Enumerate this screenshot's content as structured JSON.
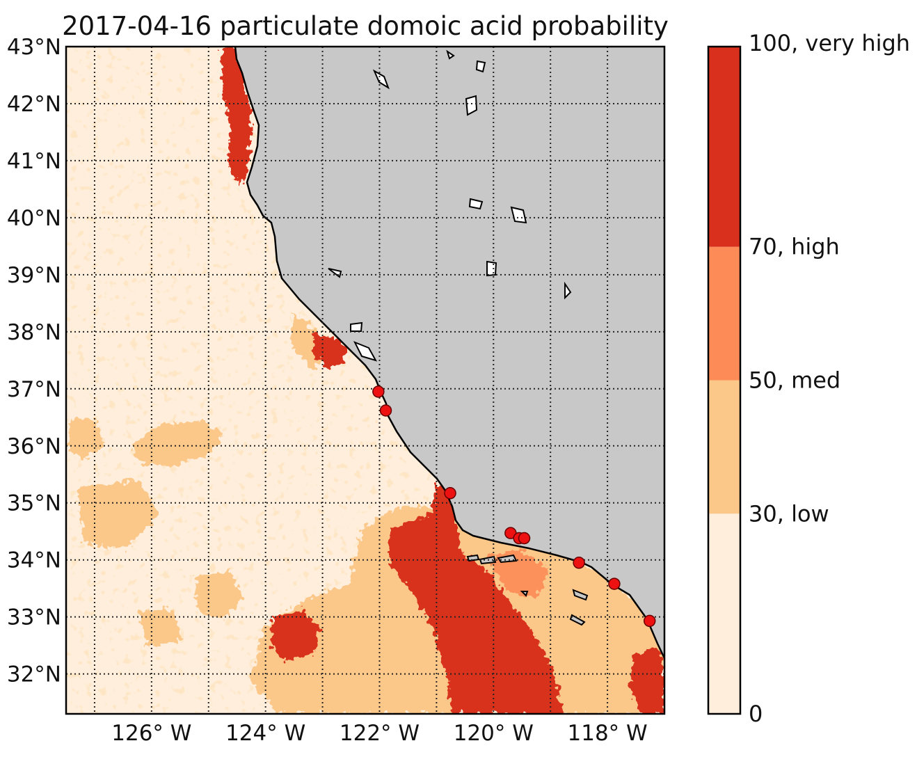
{
  "title": "2017-04-16 particulate domoic acid probability",
  "map": {
    "extent": {
      "lon_min": -127.5,
      "lon_max": -117.0,
      "lat_min": 31.3,
      "lat_max": 43.0
    },
    "lat_ticks": [
      {
        "value": 43,
        "label": "43°N"
      },
      {
        "value": 42,
        "label": "42°N"
      },
      {
        "value": 41,
        "label": "41°N"
      },
      {
        "value": 40,
        "label": "40°N"
      },
      {
        "value": 39,
        "label": "39°N"
      },
      {
        "value": 38,
        "label": "38°N"
      },
      {
        "value": 37,
        "label": "37°N"
      },
      {
        "value": 36,
        "label": "36°N"
      },
      {
        "value": 35,
        "label": "35°N"
      },
      {
        "value": 34,
        "label": "34°N"
      },
      {
        "value": 33,
        "label": "33°N"
      },
      {
        "value": 32,
        "label": "32°N"
      }
    ],
    "lon_ticks": [
      {
        "value": -126,
        "label": "126° W"
      },
      {
        "value": -124,
        "label": "124° W"
      },
      {
        "value": -122,
        "label": "122° W"
      },
      {
        "value": -120,
        "label": "120° W"
      },
      {
        "value": -118,
        "label": "118° W"
      }
    ],
    "land_color": "#c8c8c8",
    "grid": "dotted, every 1° lon and lat",
    "stations": [
      {
        "lon": -122.02,
        "lat": 36.95
      },
      {
        "lon": -121.89,
        "lat": 36.62
      },
      {
        "lon": -120.76,
        "lat": 35.17
      },
      {
        "lon": -119.7,
        "lat": 34.47
      },
      {
        "lon": -119.55,
        "lat": 34.38
      },
      {
        "lon": -119.46,
        "lat": 34.38
      },
      {
        "lon": -118.5,
        "lat": 33.95
      },
      {
        "lon": -117.88,
        "lat": 33.58
      },
      {
        "lon": -117.26,
        "lat": 32.93
      }
    ]
  },
  "colorbar": {
    "bins": [
      {
        "from": 0,
        "to": 30,
        "color": "#feeedb",
        "label": "0"
      },
      {
        "from": 30,
        "to": 50,
        "color": "#fcc88a",
        "label": "30, low"
      },
      {
        "from": 50,
        "to": 70,
        "color": "#fc8b57",
        "label": "50, med"
      },
      {
        "from": 70,
        "to": 100,
        "color": "#d9301d",
        "label": "70, high"
      }
    ],
    "top_label": "100, very high"
  }
}
